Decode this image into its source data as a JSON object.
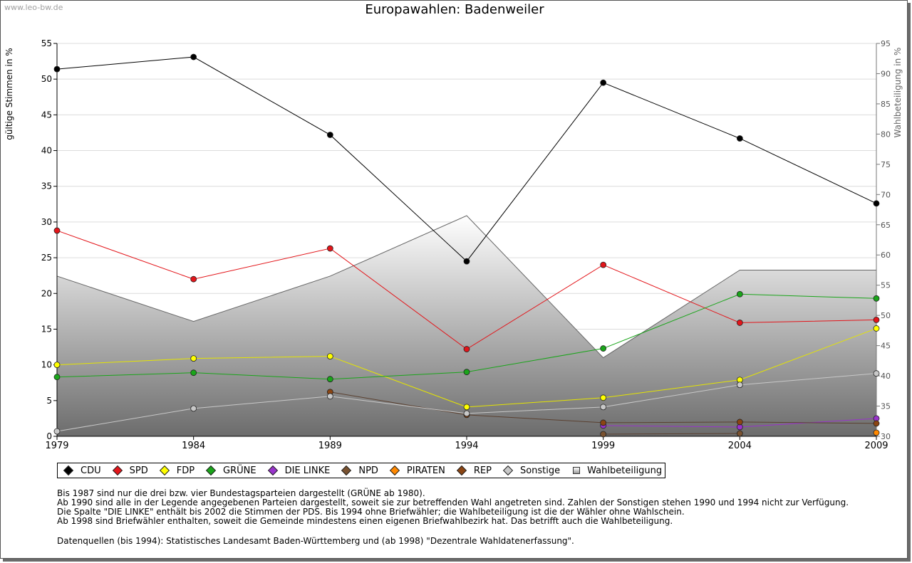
{
  "watermark": "www.leo-bw.de",
  "notes": [
    "Bis 1987 sind nur die drei bzw. vier Bundestagsparteien dargestellt (GRÜNE ab 1980).",
    "Ab 1990 sind alle in der Legende angegebenen Parteien dargestellt, soweit sie zur betreffenden Wahl angetreten sind. Zahlen der Sonstigen stehen 1990 und 1994 nicht zur Verfügung.",
    "Die Spalte \"DIE LINKE\" enthält bis 2002 die Stimmen der PDS. Bis 1994 ohne Briefwähler; die Wahlbeteiligung ist die der Wähler ohne Wahlschein.",
    "Ab 1998 sind Briefwähler enthalten, soweit die Gemeinde mindestens einen eigenen Briefwahlbezirk hat. Das betrifft auch die Wahlbeteiligung."
  ],
  "source": "Datenquellen (bis 1994): Statistisches Landesamt Baden-Württemberg und (ab 1998) \"Dezentrale Wahldatenerfassung\".",
  "chart_data": {
    "type": "line",
    "title": "Europawahlen: Badenweiler",
    "ylabel": "gültige Stimmen in %",
    "y2label": "Wahlbeteiligung in %",
    "x": [
      1979,
      1984,
      1989,
      1994,
      1999,
      2004,
      2009
    ],
    "ylim": [
      0,
      55
    ],
    "yticks": [
      0,
      5,
      10,
      15,
      20,
      25,
      30,
      35,
      40,
      45,
      50,
      55
    ],
    "y2lim": [
      30,
      95
    ],
    "y2ticks": [
      30,
      35,
      40,
      45,
      50,
      55,
      60,
      65,
      70,
      75,
      80,
      85,
      90,
      95
    ],
    "grid": true,
    "legend_position": "bottom",
    "series": [
      {
        "name": "CDU",
        "color": "#000000",
        "line": "#000000",
        "values": [
          51.4,
          53.1,
          42.2,
          24.5,
          49.5,
          41.7,
          32.6
        ]
      },
      {
        "name": "SPD",
        "color": "#e3151a",
        "line": "#e3151a",
        "values": [
          28.8,
          22.0,
          26.3,
          12.2,
          24.0,
          15.9,
          16.3
        ]
      },
      {
        "name": "FDP",
        "color": "#ffff00",
        "line": "#e5e500",
        "values": [
          10.0,
          10.9,
          11.2,
          4.1,
          5.4,
          7.9,
          15.1
        ]
      },
      {
        "name": "GRÜNE",
        "color": "#1aa51a",
        "line": "#1aa51a",
        "values": [
          8.3,
          8.9,
          8.0,
          9.0,
          12.3,
          19.9,
          19.3
        ]
      },
      {
        "name": "DIE LINKE",
        "color": "#9933cc",
        "line": "#9933cc",
        "values": [
          null,
          null,
          null,
          null,
          1.5,
          1.3,
          2.5
        ]
      },
      {
        "name": "NPD",
        "color": "#7a5230",
        "line": "#5a4030",
        "values": [
          null,
          null,
          null,
          null,
          0.3,
          0.4,
          null
        ]
      },
      {
        "name": "PIRATEN",
        "color": "#ff8800",
        "line": "#ff8800",
        "values": [
          null,
          null,
          null,
          null,
          null,
          null,
          0.5
        ]
      },
      {
        "name": "REP",
        "color": "#8b4513",
        "line": "#5a4030",
        "values": [
          null,
          null,
          6.2,
          3.0,
          1.9,
          2.0,
          1.8
        ]
      },
      {
        "name": "Sonstige",
        "color": "#c8c8c8",
        "line": "#c8c8c8",
        "values": [
          0.7,
          3.9,
          5.6,
          3.2,
          4.1,
          7.2,
          8.8
        ]
      }
    ],
    "turnout": {
      "name": "Wahlbeteiligung",
      "values": [
        56.5,
        49.0,
        56.5,
        66.5,
        43.0,
        57.5,
        57.5
      ]
    }
  }
}
